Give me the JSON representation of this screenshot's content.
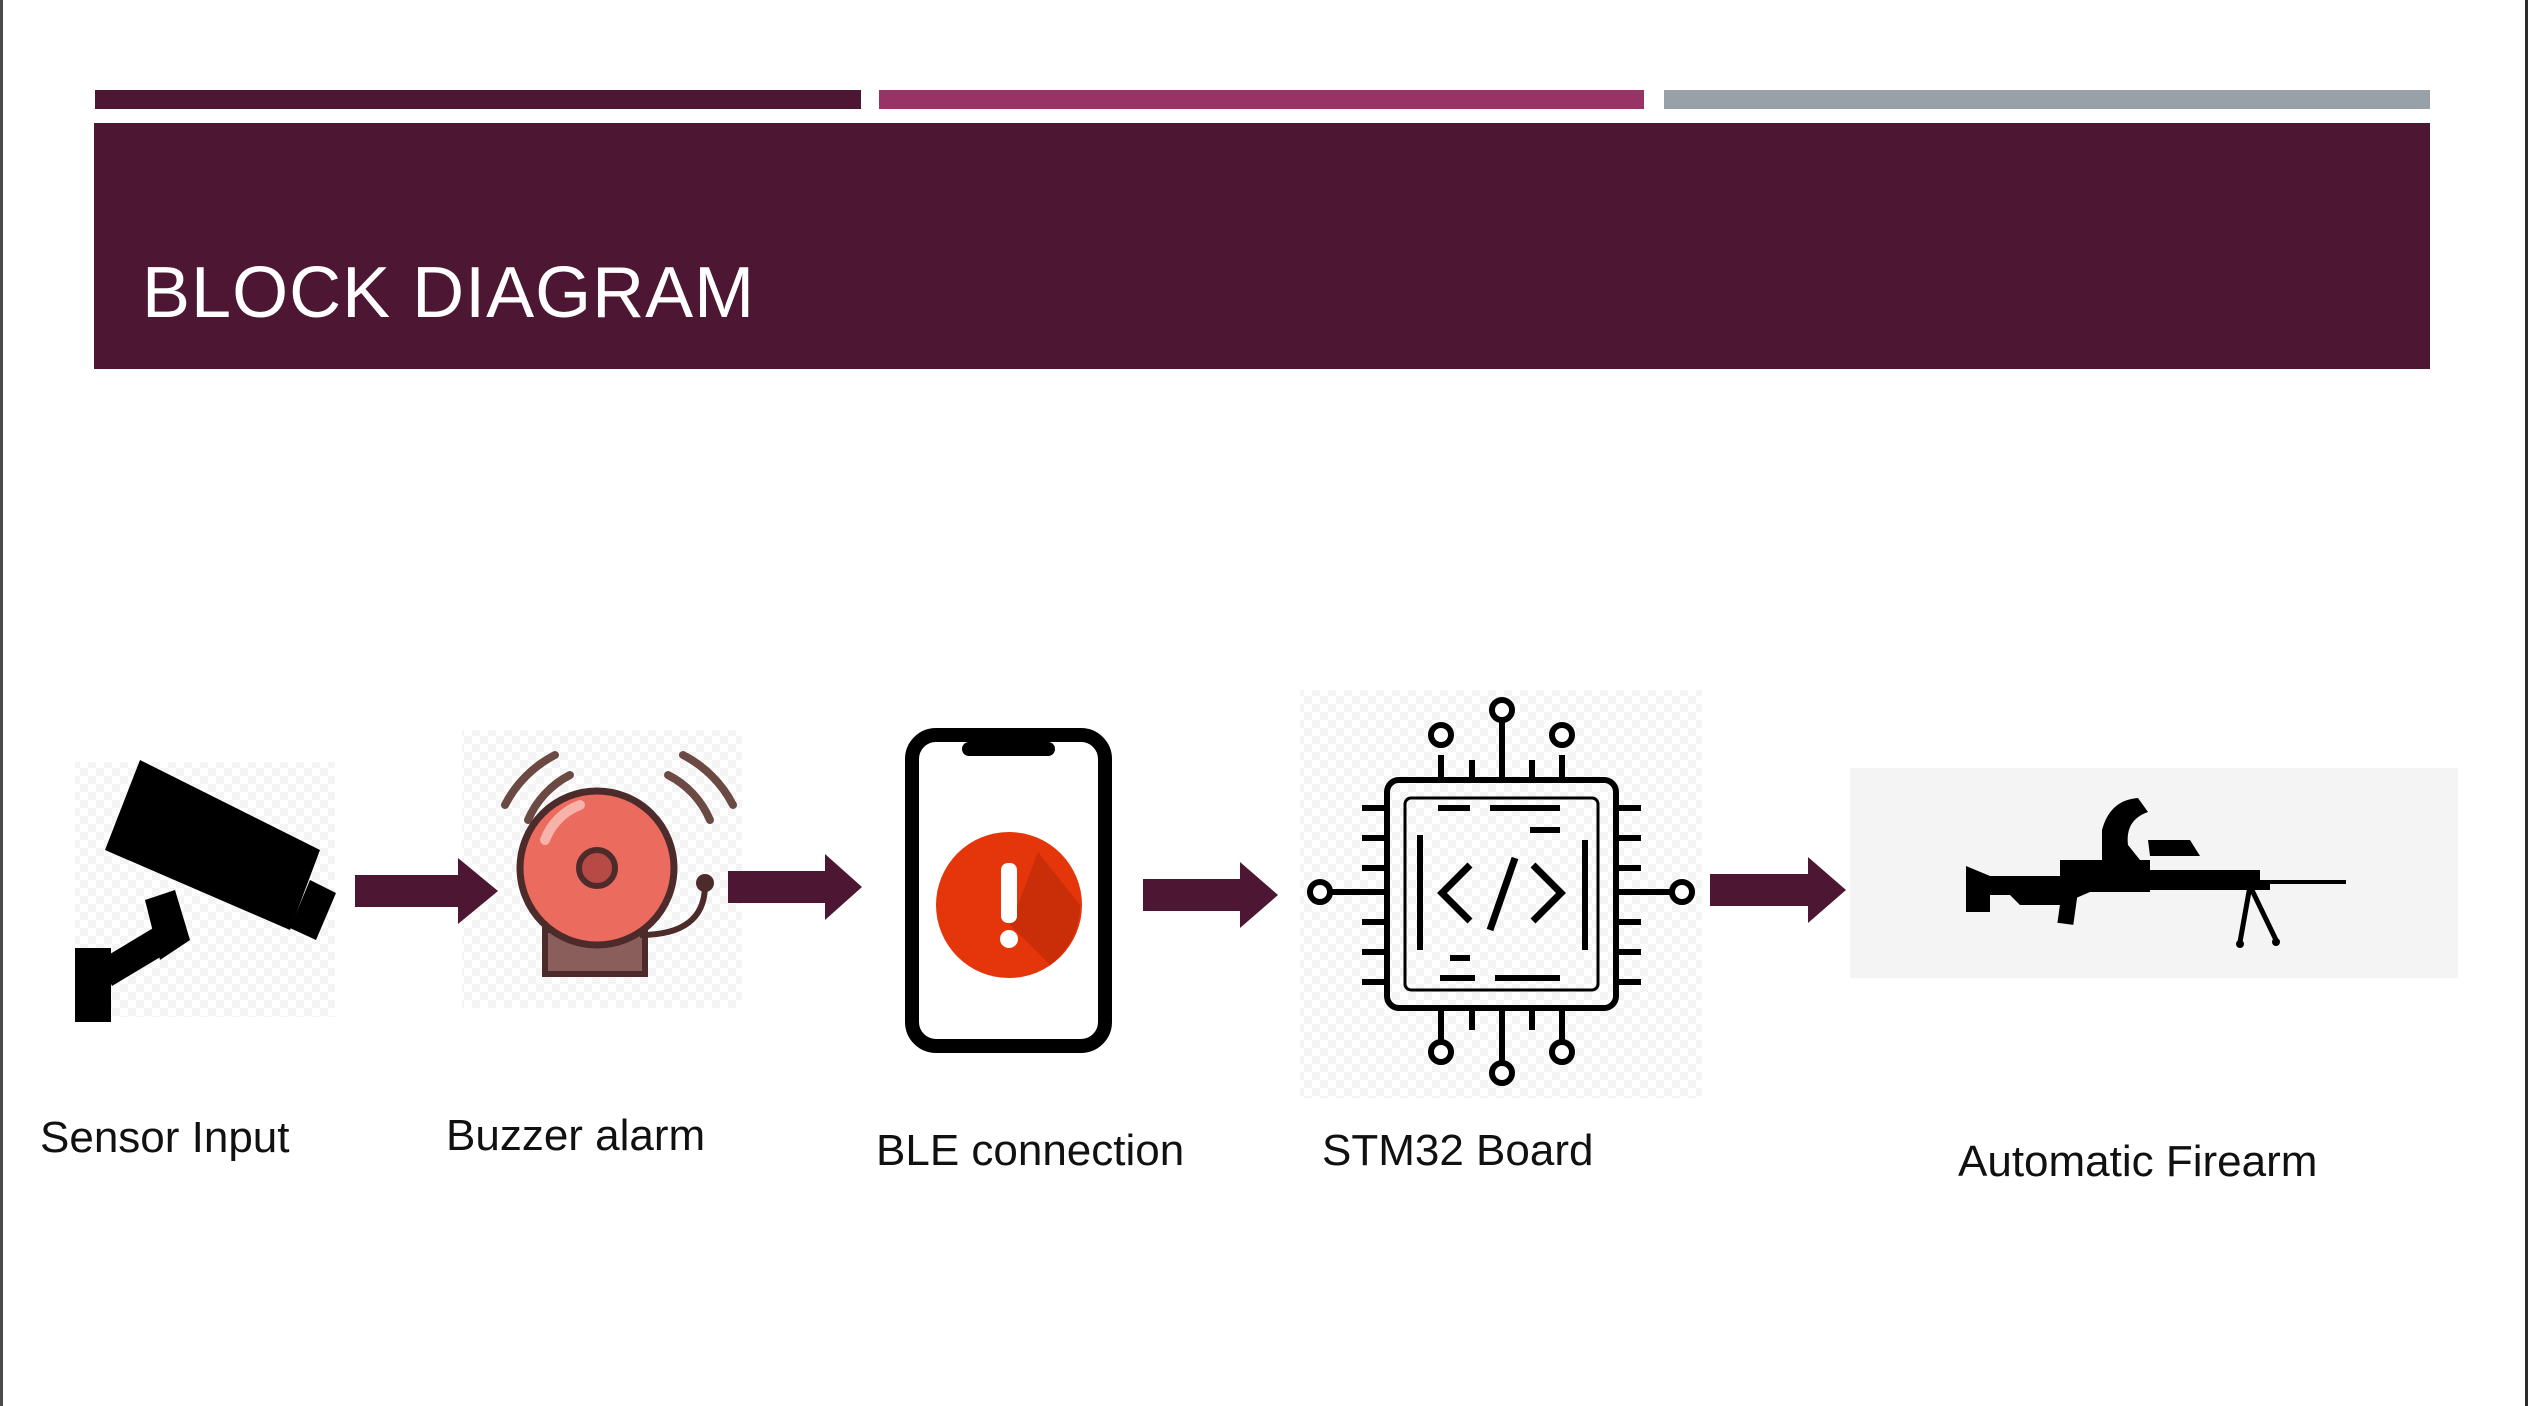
{
  "slide": {
    "title": "BLOCK DIAGRAM"
  },
  "colors": {
    "banner": "#4d1734",
    "stripe_1": "#4d1734",
    "stripe_2": "#993366",
    "stripe_3": "#98a0a8",
    "arrow": "#4d1734"
  },
  "diagram": {
    "nodes": [
      {
        "label": "Sensor Input",
        "icon": "security-camera-icon"
      },
      {
        "label": "Buzzer alarm",
        "icon": "alarm-bell-icon"
      },
      {
        "label": "BLE connection",
        "icon": "smartphone-alert-icon"
      },
      {
        "label": "STM32 Board",
        "icon": "microchip-icon"
      },
      {
        "label": "Automatic Firearm",
        "icon": "machine-gun-icon"
      }
    ]
  }
}
